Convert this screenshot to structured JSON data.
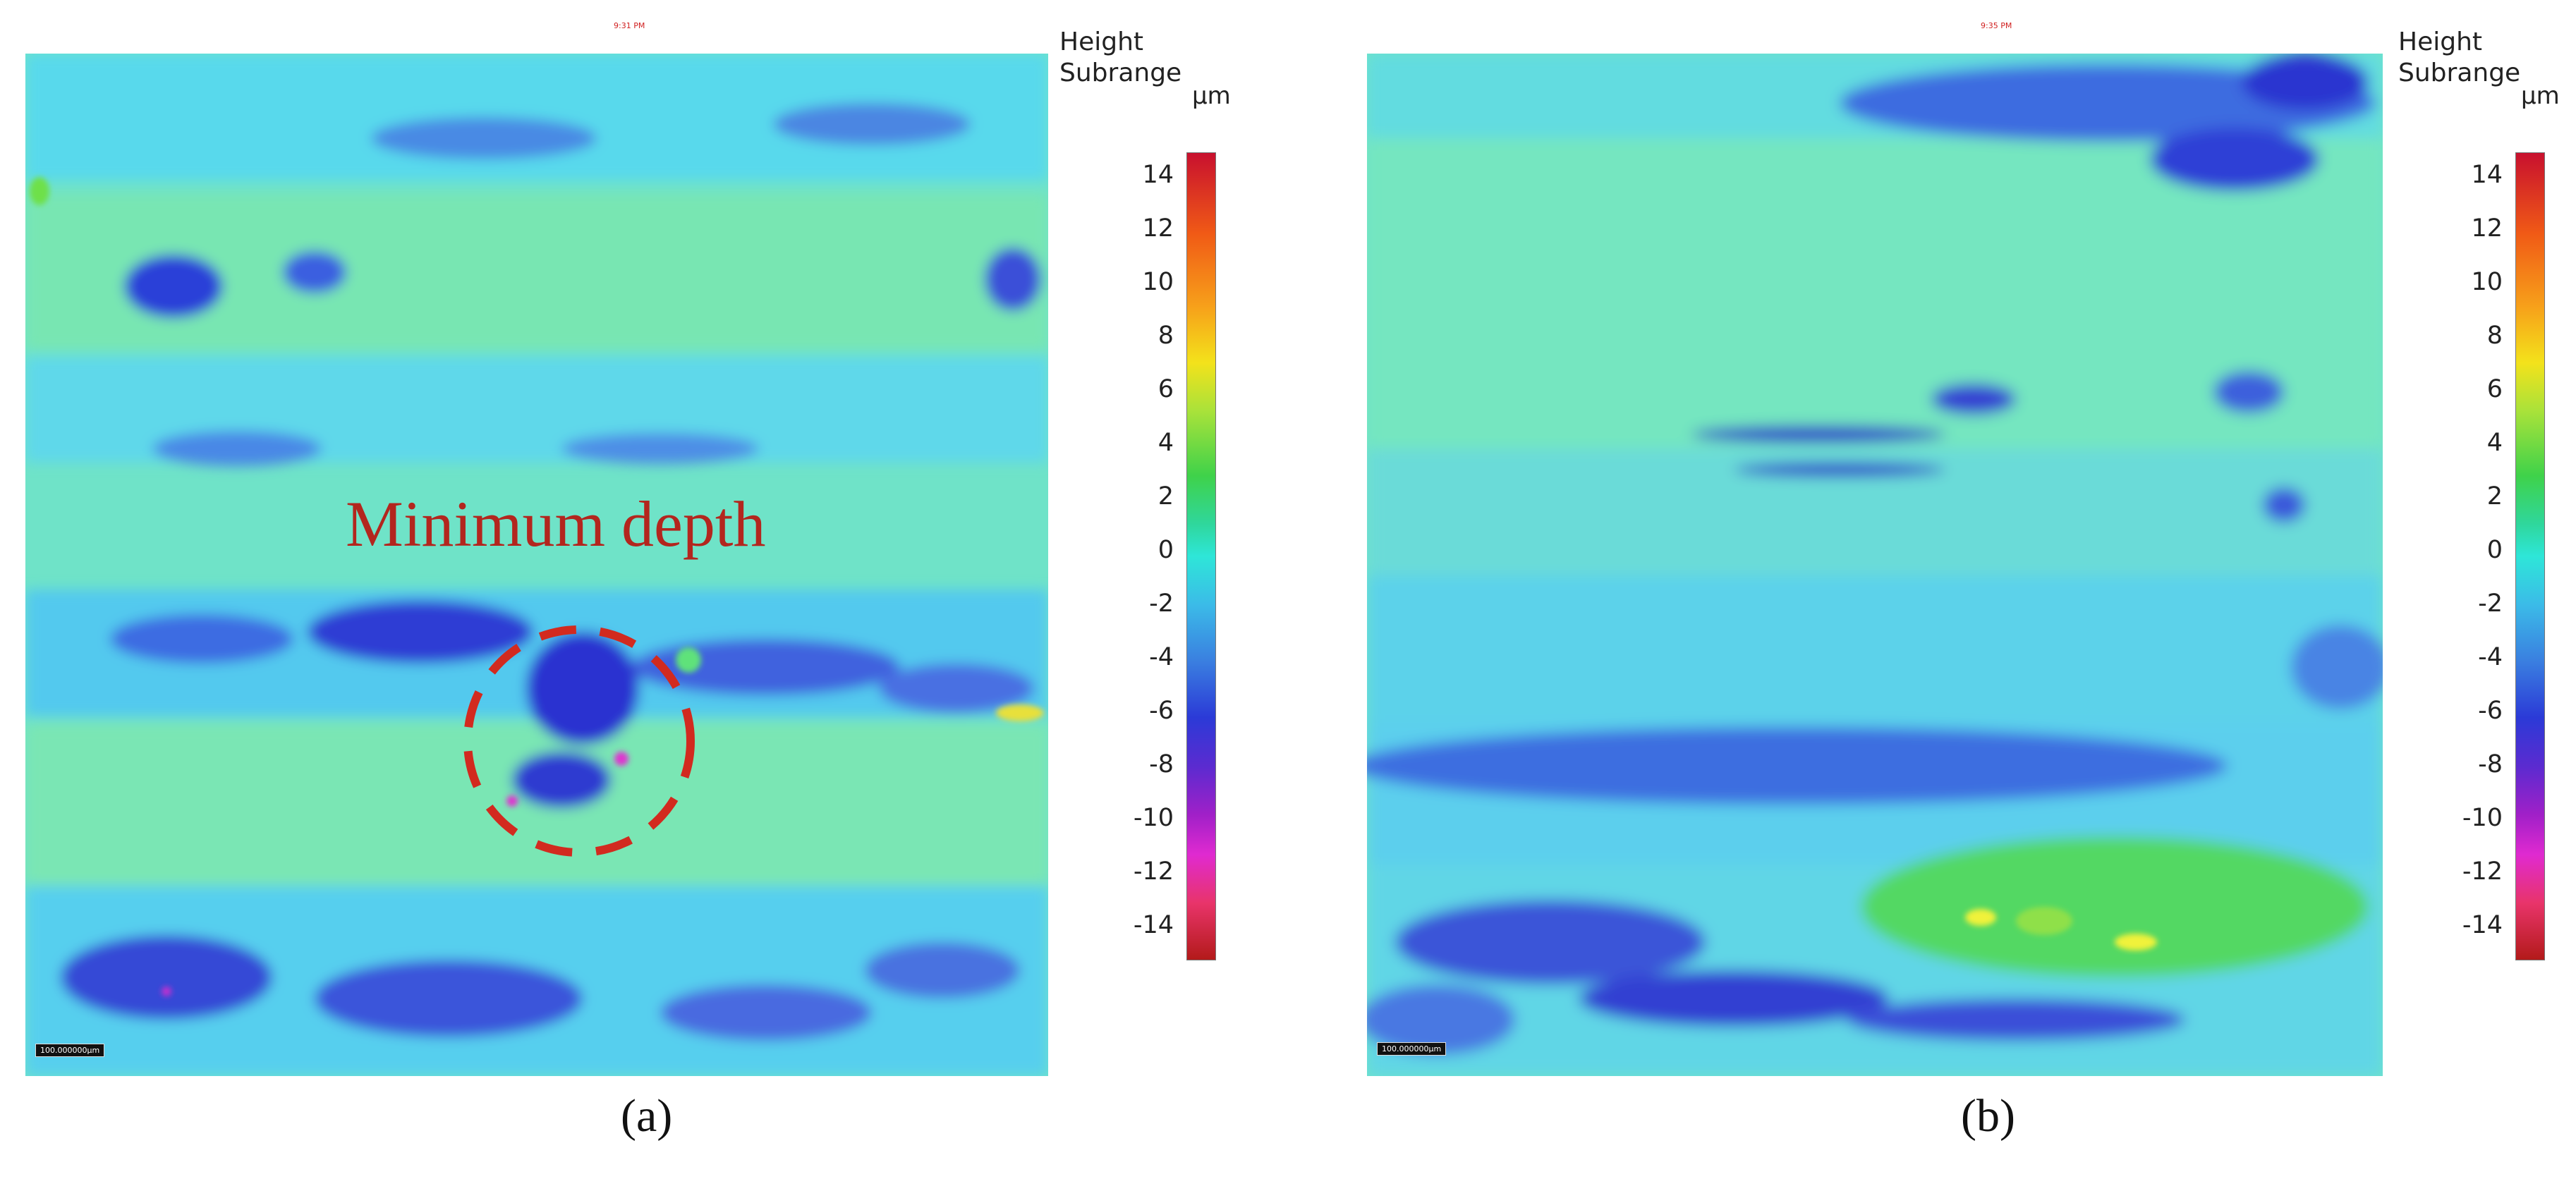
{
  "panels": [
    {
      "id": "a",
      "caption": "(a)",
      "map_title": "9:31 PM",
      "scale_bar": "100.000000µm",
      "annotation": "Minimum depth",
      "colorbar": {
        "title_line1": "Height",
        "title_line2": "Subrange",
        "unit": "µm",
        "ticks": [
          "14",
          "12",
          "10",
          "8",
          "6",
          "4",
          "2",
          "0",
          "-2",
          "-4",
          "-6",
          "-8",
          "-10",
          "-12",
          "-14"
        ]
      }
    },
    {
      "id": "b",
      "caption": "(b)",
      "map_title": "9:35 PM",
      "scale_bar": "100.000000µm",
      "colorbar": {
        "title_line1": "Height",
        "title_line2": "Subrange",
        "unit": "µm",
        "ticks": [
          "14",
          "12",
          "10",
          "8",
          "6",
          "4",
          "2",
          "0",
          "-2",
          "-4",
          "-6",
          "-8",
          "-10",
          "-12",
          "-14"
        ]
      }
    }
  ],
  "colors": {
    "surface_base": "#6ee6c6",
    "surface_cyan": "#55d8ef",
    "surface_pit": "#2d3ed8",
    "circle_marker": "#d22a1f"
  }
}
